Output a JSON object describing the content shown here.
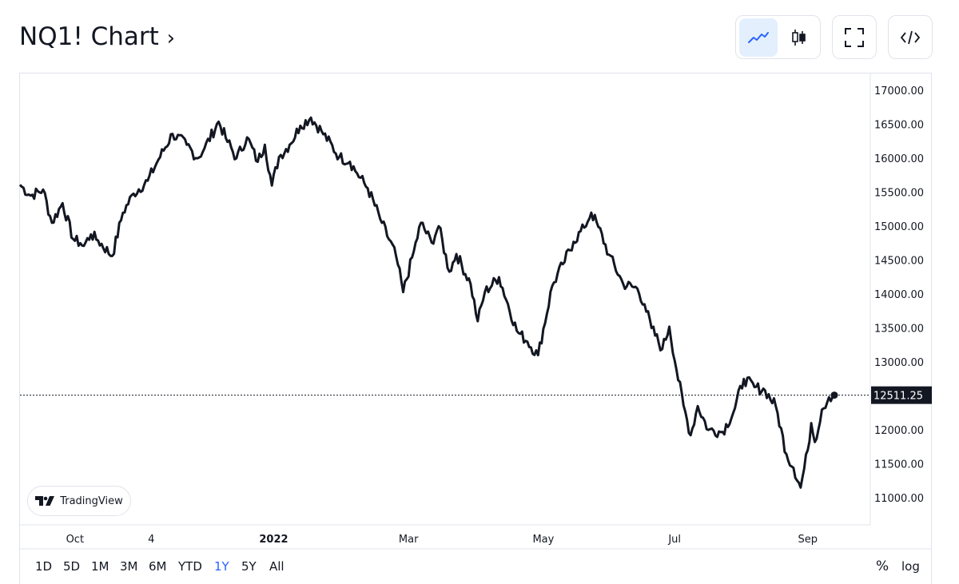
{
  "header": {
    "title": "NQ1! Chart",
    "title_chevron": "›",
    "buttons": [
      "line-chart-icon",
      "candlestick-icon",
      "fullscreen-icon",
      "embed-code-icon"
    ]
  },
  "price_axis": {
    "labels": [
      "17000.00",
      "16500.00",
      "16000.00",
      "15500.00",
      "15000.00",
      "14500.00",
      "14000.00",
      "13500.00",
      "13000.00",
      "12000.00",
      "11500.00",
      "11000.00"
    ],
    "current_price": "12511.25"
  },
  "time_axis": {
    "labels": [
      "Oct",
      "4",
      "2022",
      "Mar",
      "May",
      "Jul",
      "Sep"
    ]
  },
  "branding": {
    "text": "TradingView"
  },
  "timeframes": [
    "1D",
    "5D",
    "1M",
    "3M",
    "6M",
    "YTD",
    "1Y",
    "5Y",
    "All"
  ],
  "active_timeframe": "1Y",
  "scale_buttons": [
    "%",
    "log"
  ],
  "colors": {
    "line": "#131722",
    "accent": "#2962ff",
    "active_bg": "#e3effd",
    "border": "#e0e3eb"
  },
  "chart_data": {
    "type": "line",
    "ylim": [
      10600,
      17250
    ],
    "y_ticks": [
      17000,
      16500,
      16000,
      15500,
      15000,
      14500,
      14000,
      13500,
      13000,
      12000,
      11500,
      11000
    ],
    "x_ticks": [
      {
        "label": "Oct",
        "index": 31
      },
      {
        "label": "4",
        "index": 74
      },
      {
        "label": "2022",
        "index": 143
      },
      {
        "label": "Mar",
        "index": 219
      },
      {
        "label": "May",
        "index": 295
      },
      {
        "label": "Jul",
        "index": 369
      },
      {
        "label": "Sep",
        "index": 444
      }
    ],
    "last_value": 12511.25,
    "n_points": 460,
    "anchors": [
      [
        0,
        15610
      ],
      [
        6,
        15450
      ],
      [
        13,
        15540
      ],
      [
        18,
        15050
      ],
      [
        24,
        15340
      ],
      [
        30,
        14810
      ],
      [
        34,
        14750
      ],
      [
        36,
        14710
      ],
      [
        40,
        14880
      ],
      [
        44,
        14790
      ],
      [
        52,
        14560
      ],
      [
        58,
        15200
      ],
      [
        64,
        15480
      ],
      [
        72,
        15670
      ],
      [
        78,
        15980
      ],
      [
        86,
        16360
      ],
      [
        94,
        16200
      ],
      [
        100,
        16000
      ],
      [
        104,
        16150
      ],
      [
        112,
        16540
      ],
      [
        116,
        16300
      ],
      [
        122,
        16000
      ],
      [
        128,
        16310
      ],
      [
        134,
        15950
      ],
      [
        138,
        16200
      ],
      [
        142,
        15600
      ],
      [
        146,
        16020
      ],
      [
        152,
        16200
      ],
      [
        158,
        16480
      ],
      [
        164,
        16600
      ],
      [
        170,
        16400
      ],
      [
        180,
        16020
      ],
      [
        186,
        15950
      ],
      [
        190,
        15780
      ],
      [
        196,
        15560
      ],
      [
        204,
        15050
      ],
      [
        212,
        14560
      ],
      [
        216,
        14030
      ],
      [
        222,
        14630
      ],
      [
        226,
        15050
      ],
      [
        232,
        14760
      ],
      [
        236,
        15000
      ],
      [
        242,
        14330
      ],
      [
        246,
        14590
      ],
      [
        254,
        14150
      ],
      [
        258,
        13600
      ],
      [
        262,
        14030
      ],
      [
        270,
        14250
      ],
      [
        280,
        13460
      ],
      [
        286,
        13300
      ],
      [
        292,
        13100
      ],
      [
        300,
        14120
      ],
      [
        306,
        14440
      ],
      [
        312,
        14770
      ],
      [
        318,
        14980
      ],
      [
        322,
        15200
      ],
      [
        326,
        14990
      ],
      [
        332,
        14580
      ],
      [
        340,
        14150
      ],
      [
        348,
        14080
      ],
      [
        352,
        13850
      ],
      [
        356,
        13500
      ],
      [
        362,
        13190
      ],
      [
        366,
        13520
      ],
      [
        370,
        12890
      ],
      [
        374,
        12360
      ],
      [
        378,
        11920
      ],
      [
        382,
        12350
      ],
      [
        388,
        12000
      ],
      [
        396,
        11970
      ],
      [
        402,
        12250
      ],
      [
        408,
        12750
      ],
      [
        414,
        12630
      ],
      [
        420,
        12580
      ],
      [
        426,
        12350
      ],
      [
        432,
        11640
      ],
      [
        436,
        11440
      ],
      [
        440,
        11150
      ],
      [
        444,
        11700
      ],
      [
        446,
        12100
      ],
      [
        448,
        11820
      ],
      [
        452,
        12300
      ],
      [
        456,
        12480
      ],
      [
        459,
        12511.25
      ]
    ]
  }
}
